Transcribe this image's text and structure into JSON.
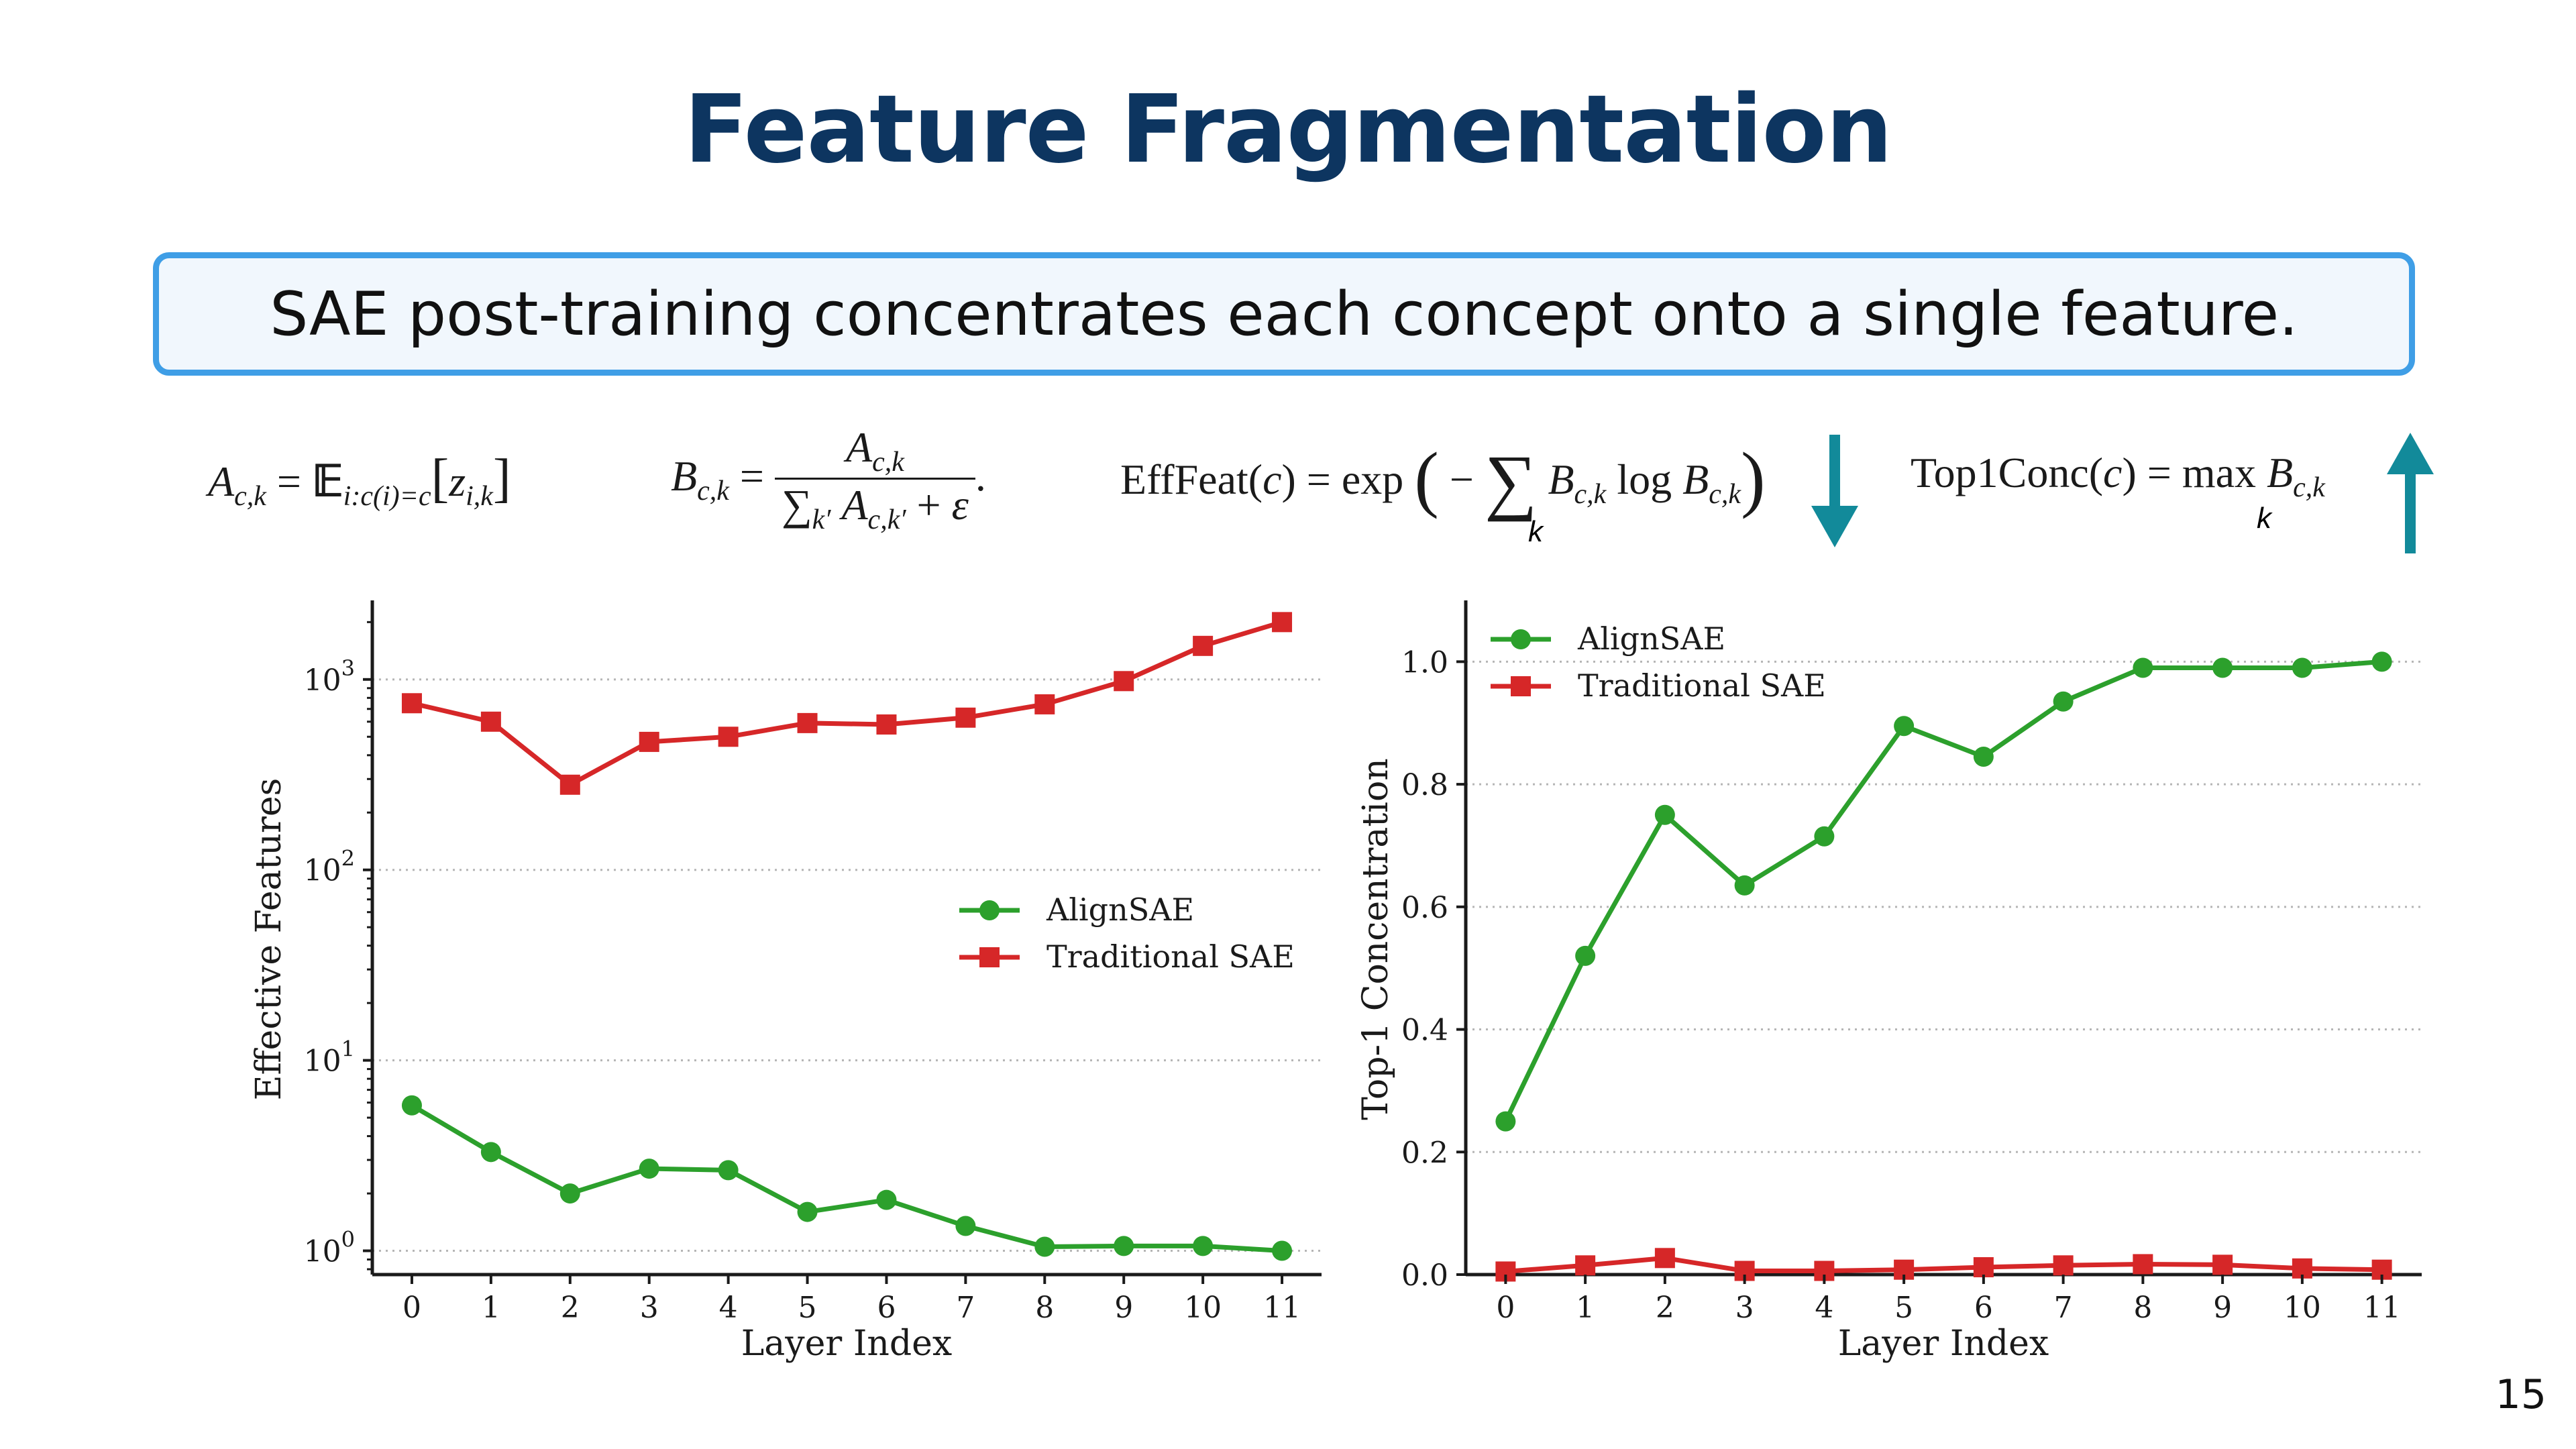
{
  "slide": {
    "title": "Feature Fragmentation",
    "callout": "SAE post-training concentrates each concept onto a single feature.",
    "page_number": "15"
  },
  "formulas": {
    "a_def": "A_{c,k} = E_{i:c(i)=c}[z_{i,k}]",
    "b_def": "B_{c,k} = A_{c,k} / (Σ_{k'} A_{c,k'} + ε)",
    "efffeat_def": "EffFeat(c) = exp(−Σ_k B_{c,k} log B_{c,k})",
    "top1conc_def": "Top1Conc(c) = max_k B_{c,k}",
    "efffeat_arrow": "down-arrow",
    "top1conc_arrow": "up-arrow",
    "arrow_color": "#128a9a"
  },
  "chart_data": [
    {
      "type": "line",
      "xlabel": "Layer Index",
      "ylabel": "Effective Features",
      "yscale": "log",
      "ylim": [
        0.75,
        2600
      ],
      "xlim": [
        -0.5,
        11.5
      ],
      "yticks": [
        1,
        10,
        100,
        1000
      ],
      "ytick_labels": [
        "10^0",
        "10^1",
        "10^2",
        "10^3"
      ],
      "grid": "horizontal dotted",
      "legend": "center-right",
      "x": [
        0,
        1,
        2,
        3,
        4,
        5,
        6,
        7,
        8,
        9,
        10,
        11
      ],
      "series": [
        {
          "name": "AlignSAE",
          "color": "#2ca02c",
          "marker": "circle",
          "values": [
            5.8,
            3.3,
            2.0,
            2.7,
            2.65,
            1.6,
            1.85,
            1.35,
            1.05,
            1.06,
            1.06,
            1.0
          ]
        },
        {
          "name": "Traditional SAE",
          "color": "#d62728",
          "marker": "square",
          "values": [
            750,
            600,
            280,
            470,
            500,
            590,
            580,
            630,
            740,
            980,
            1500,
            2000
          ]
        }
      ]
    },
    {
      "type": "line",
      "xlabel": "Layer Index",
      "ylabel": "Top-1 Concentration",
      "yscale": "linear",
      "ylim": [
        0.0,
        1.1
      ],
      "xlim": [
        -0.5,
        11.5
      ],
      "yticks": [
        0.0,
        0.2,
        0.4,
        0.6,
        0.8,
        1.0
      ],
      "ytick_labels": [
        "0.0",
        "0.2",
        "0.4",
        "0.6",
        "0.8",
        "1.0"
      ],
      "grid": "horizontal dotted",
      "legend": "top-left",
      "x": [
        0,
        1,
        2,
        3,
        4,
        5,
        6,
        7,
        8,
        9,
        10,
        11
      ],
      "series": [
        {
          "name": "AlignSAE",
          "color": "#2ca02c",
          "marker": "circle",
          "values": [
            0.25,
            0.52,
            0.75,
            0.635,
            0.715,
            0.895,
            0.845,
            0.935,
            0.99,
            0.99,
            0.99,
            1.0
          ]
        },
        {
          "name": "Traditional SAE",
          "color": "#d62728",
          "marker": "square",
          "values": [
            0.005,
            0.015,
            0.027,
            0.006,
            0.006,
            0.008,
            0.012,
            0.015,
            0.017,
            0.016,
            0.01,
            0.008
          ]
        }
      ]
    }
  ]
}
